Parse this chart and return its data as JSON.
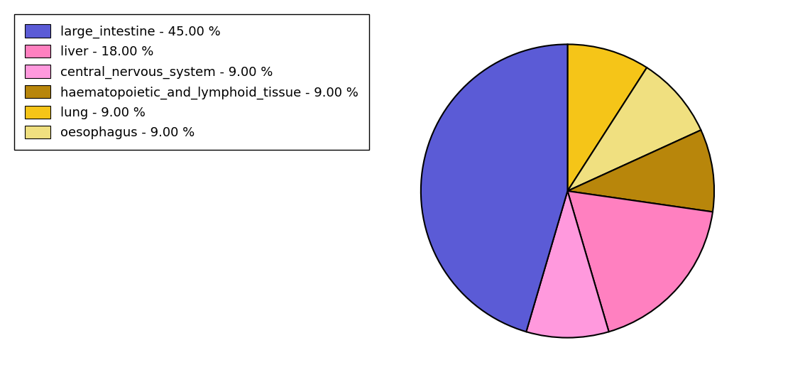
{
  "labels": [
    "large_intestine - 45.00 %",
    "liver - 18.00 %",
    "central_nervous_system - 9.00 %",
    "haematopoietic_and_lymphoid_tissue - 9.00 %",
    "lung - 9.00 %",
    "oesophagus - 9.00 %"
  ],
  "legend_colors": [
    "#5b5bd6",
    "#ff80c0",
    "#ff99dd",
    "#b8860b",
    "#f5c518",
    "#f0e080"
  ],
  "plot_values": [
    9,
    9,
    9,
    18,
    9,
    45
  ],
  "plot_colors": [
    "#f5c518",
    "#f0e080",
    "#b8860b",
    "#ff80c0",
    "#ff99dd",
    "#5b5bd6"
  ],
  "startangle": 90,
  "figsize": [
    11.34,
    5.38
  ],
  "dpi": 100
}
